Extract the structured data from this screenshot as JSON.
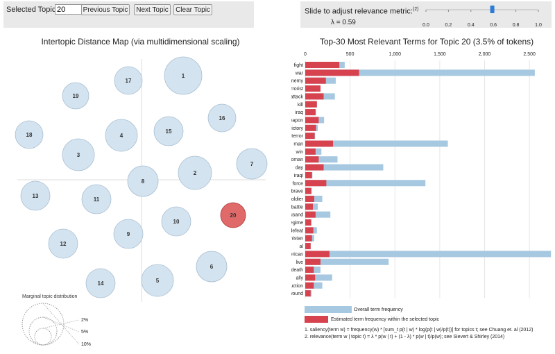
{
  "controls": {
    "topic_label": "Selected Topic:",
    "topic_value": "20",
    "prev_label": "Previous Topic",
    "next_label": "Next Topic",
    "clear_label": "Clear Topic",
    "slider_label": "Slide to adjust relevance metric:",
    "slider_sup": "(2)",
    "lambda_text": "λ = 0.59",
    "lambda_value": 0.59,
    "slider_ticks": [
      "0.0",
      "0.2",
      "0.4",
      "0.6",
      "0.8",
      "1.0"
    ]
  },
  "map": {
    "title": "Intertopic Distance Map (via multidimensional scaling)",
    "selected_topic": "20",
    "size_legend_title": "Marginal topic distribution",
    "size_legend_labels": [
      "2%",
      "5%",
      "10%"
    ],
    "topics": [
      "1",
      "2",
      "3",
      "4",
      "5",
      "6",
      "7",
      "8",
      "9",
      "10",
      "11",
      "12",
      "13",
      "14",
      "15",
      "16",
      "17",
      "18",
      "19",
      "20"
    ]
  },
  "colors": {
    "overall": "#a6c8e0",
    "selected": "#d6434f",
    "circle": "#d3e3f0",
    "circle_stroke": "#a9bfd2",
    "selected_circle": "#e06a6a"
  },
  "chart_data": {
    "type": "bar",
    "orientation": "horizontal",
    "title": "Top-30 Most Relevant Terms for Topic 20 (3.5% of tokens)",
    "xlim": [
      0,
      2700
    ],
    "ticks": [
      "0",
      "500",
      "1,000",
      "1,500",
      "2,000",
      "2,500"
    ],
    "tick_values": [
      0,
      500,
      1000,
      1500,
      2000,
      2500
    ],
    "categories": [
      "fight",
      "war",
      "enemy",
      "terrorist",
      "attack",
      "kill",
      "iraq",
      "weapon",
      "victory",
      "terror",
      "man",
      "win",
      "woman",
      "day",
      "iraqi",
      "force",
      "brave",
      "soldier",
      "battle",
      "thousand",
      "regime",
      "defeat",
      "afghanistan",
      "al",
      "american",
      "live",
      "death",
      "ally",
      "destruction",
      "wound"
    ],
    "series": [
      {
        "name": "Overall term frequency",
        "values": [
          440,
          2560,
          340,
          170,
          330,
          130,
          120,
          210,
          140,
          110,
          1590,
          180,
          360,
          870,
          80,
          1340,
          75,
          190,
          140,
          280,
          70,
          130,
          100,
          60,
          2740,
          930,
          170,
          300,
          190,
          70
        ]
      },
      {
        "name": "Estimated term frequency within the selected topic",
        "values": [
          380,
          600,
          230,
          170,
          205,
          130,
          115,
          150,
          120,
          105,
          310,
          115,
          150,
          205,
          75,
          235,
          65,
          100,
          85,
          115,
          65,
          90,
          75,
          60,
          270,
          170,
          95,
          110,
          95,
          60
        ]
      }
    ],
    "legend": [
      "Overall term frequency",
      "Estimated term frequency within the selected topic"
    ]
  },
  "notes": [
    "1. saliency(term w) = frequency(w) * [sum_t p(t | w) * log(p(t | w)/p(t))] for topics t; see Chuang et. al (2012)",
    "2. relevance(term w | topic t) = λ * p(w | t) + (1 - λ) * p(w | t)/p(w); see Sievert & Shirley (2014)"
  ]
}
